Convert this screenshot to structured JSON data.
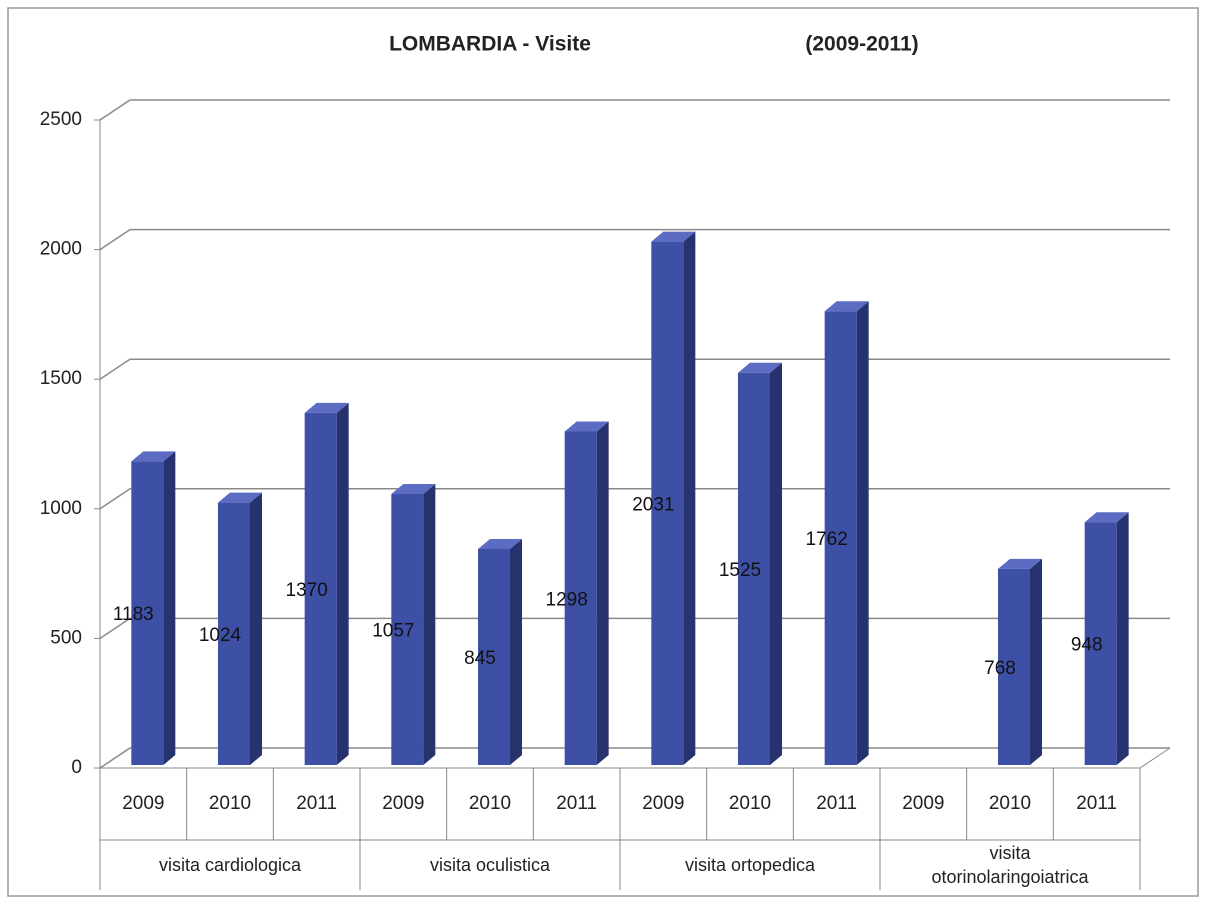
{
  "chart_data": {
    "type": "bar3d",
    "title": "LOMBARDIA - Visite",
    "subtitle": "(2009-2011)",
    "categories": [
      "2009",
      "2010",
      "2011",
      "2009",
      "2010",
      "2011",
      "2009",
      "2010",
      "2011",
      "2009",
      "2010",
      "2011"
    ],
    "groups": [
      "visita cardiologica",
      "visita oculistica",
      "visita ortopedica",
      "visita otorinolaringoiatrica"
    ],
    "values": [
      1183,
      1024,
      1370,
      1057,
      845,
      1298,
      2031,
      1525,
      1762,
      null,
      768,
      948
    ],
    "color": "#3e4fa6",
    "ylim": [
      0,
      2500
    ],
    "yticks": [
      0,
      500,
      1000,
      1500,
      2000,
      2500
    ],
    "grid": true
  }
}
